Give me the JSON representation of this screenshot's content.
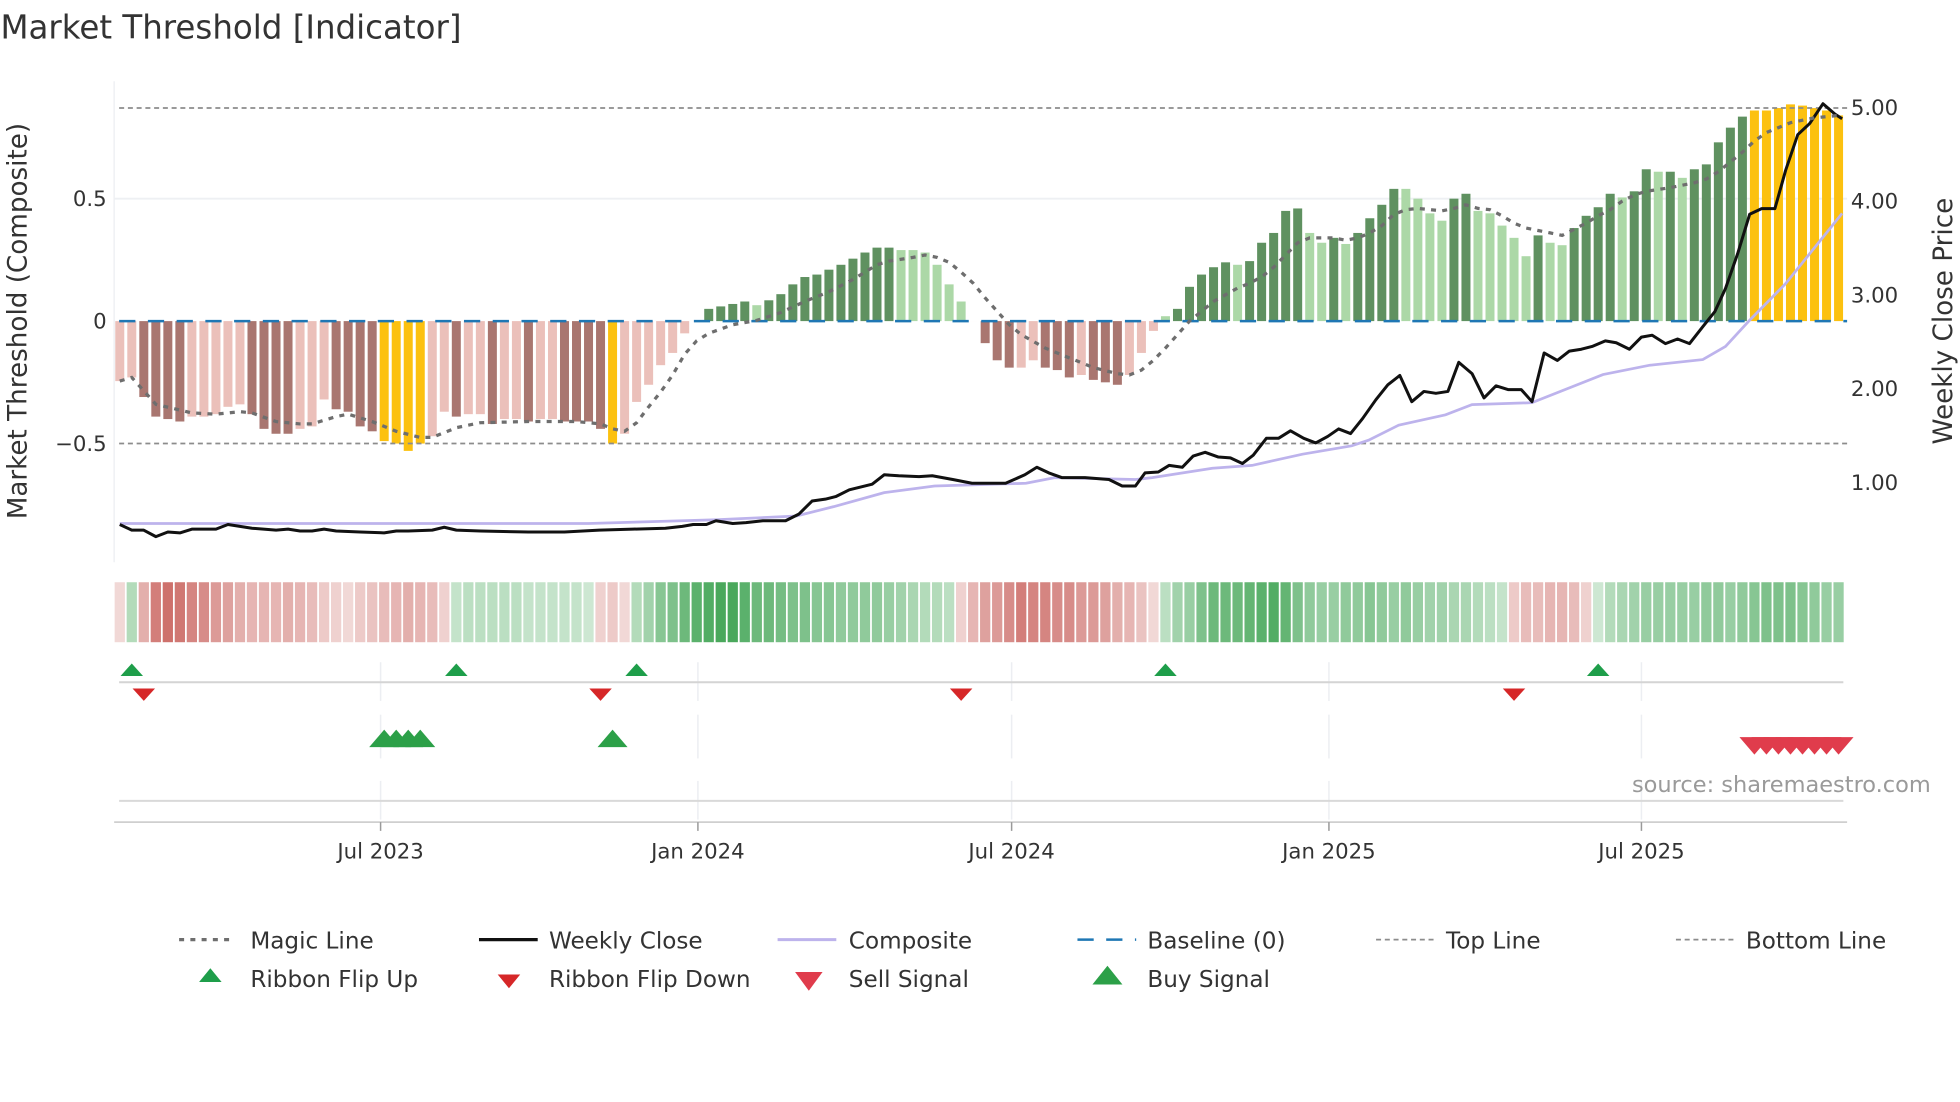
{
  "title": "Market Threshold [Indicator]",
  "source": "source: sharemaestro.com",
  "colors": {
    "bar_dark_negative": "#a97670",
    "bar_light_negative": "#ebc0ba",
    "bar_dark_positive": "#5f9160",
    "bar_light_positive": "#acd8a7",
    "bar_extreme": "#fcc10f",
    "magic_line": "#6e6e6e",
    "weekly_close": "#111111",
    "composite": "#bdb3ec",
    "baseline": "#1f77b4",
    "threshold_lines": "#8c8c8c",
    "ribbon_red": "#c9635e",
    "ribbon_green": "#38a04c",
    "flip_up": "#1e9e4a",
    "flip_down": "#d62728",
    "buy": "#2ca048",
    "sell": "#e03c4c"
  },
  "chart_data": {
    "type": "bar+line",
    "title": "Market Threshold [Indicator]",
    "x_unit": "week index",
    "ylabel_left": "Market Threshold (Composite)",
    "ylabel_right": "Weekly Close Price",
    "ylim_left": [
      -0.95,
      1.0
    ],
    "ylim_right": [
      0,
      5.2
    ],
    "left_ticks": [
      {
        "value": 0.5,
        "label": "0.5"
      },
      {
        "value": 0,
        "label": "0"
      },
      {
        "value": -0.5,
        "label": "−0.5"
      }
    ],
    "right_ticks": [
      {
        "value": 5,
        "label": "5.00"
      },
      {
        "value": 4,
        "label": "4.00"
      },
      {
        "value": 3,
        "label": "3.00"
      },
      {
        "value": 2,
        "label": "2.00"
      },
      {
        "value": 1,
        "label": "1.00"
      }
    ],
    "x_ticks": [
      {
        "week": 22.7,
        "label": "Jul 2023"
      },
      {
        "week": 49.1,
        "label": "Jan 2024"
      },
      {
        "week": 75.2,
        "label": "Jul 2024"
      },
      {
        "week": 101.6,
        "label": "Jan 2025"
      },
      {
        "week": 127.6,
        "label": "Jul 2025"
      }
    ],
    "top_line": 0.87,
    "bottom_line": -0.5,
    "baseline": 0,
    "grid": true,
    "legend_position": "bottom",
    "bars": {
      "values": [
        -0.245,
        -0.23,
        -0.31,
        -0.39,
        -0.4,
        -0.41,
        -0.39,
        -0.39,
        -0.38,
        -0.35,
        -0.34,
        -0.38,
        -0.44,
        -0.46,
        -0.46,
        -0.44,
        -0.43,
        -0.32,
        -0.36,
        -0.37,
        -0.43,
        -0.45,
        -0.49,
        -0.5,
        -0.53,
        -0.5,
        -0.47,
        -0.37,
        -0.39,
        -0.38,
        -0.38,
        -0.42,
        -0.4,
        -0.4,
        -0.41,
        -0.4,
        -0.4,
        -0.41,
        -0.41,
        -0.41,
        -0.44,
        -0.5,
        -0.46,
        -0.33,
        -0.26,
        -0.18,
        -0.13,
        -0.05,
        0,
        0.05,
        0.06,
        0.07,
        0.08,
        0.065,
        0.085,
        0.11,
        0.15,
        0.18,
        0.19,
        0.21,
        0.23,
        0.255,
        0.28,
        0.3,
        0.3,
        0.29,
        0.29,
        0.28,
        0.23,
        0.15,
        0.08,
        0,
        -0.09,
        -0.16,
        -0.19,
        -0.19,
        -0.16,
        -0.19,
        -0.2,
        -0.23,
        -0.22,
        -0.24,
        -0.25,
        -0.26,
        -0.22,
        -0.13,
        -0.04,
        0.02,
        0.05,
        0.14,
        0.19,
        0.22,
        0.24,
        0.23,
        0.245,
        0.32,
        0.36,
        0.45,
        0.46,
        0.36,
        0.32,
        0.34,
        0.315,
        0.36,
        0.42,
        0.475,
        0.54,
        0.54,
        0.5,
        0.44,
        0.41,
        0.5,
        0.52,
        0.45,
        0.44,
        0.39,
        0.34,
        0.265,
        0.35,
        0.32,
        0.31,
        0.38,
        0.43,
        0.465,
        0.52,
        0.505,
        0.53,
        0.62,
        0.61,
        0.61,
        0.585,
        0.62,
        0.64,
        0.73,
        0.79,
        0.835,
        0.86,
        0.86,
        0.87,
        0.885,
        0.88,
        0.87,
        0.86,
        0.84
      ],
      "color_codes": "LLDDDDLLLLLDDDDLLLDDDDYYYYLLDLLDLLDLLDDDDYLLLLLLLGGGGgGGGGGGGGGGGggggggLDDDLLDDDLDDDLLLgGGGGGgGGGGGggGgGGGGggggGGgggggGggGGGGgGGgGgGGGGGYYYYYYYY"
    },
    "magic_line": [
      [
        1,
        -0.245
      ],
      [
        2,
        -0.23
      ],
      [
        4,
        -0.34
      ],
      [
        7,
        -0.375
      ],
      [
        9,
        -0.38
      ],
      [
        11,
        -0.37
      ],
      [
        12,
        -0.375
      ],
      [
        14,
        -0.41
      ],
      [
        16,
        -0.42
      ],
      [
        17,
        -0.42
      ],
      [
        19,
        -0.39
      ],
      [
        20,
        -0.38
      ],
      [
        22,
        -0.41
      ],
      [
        24,
        -0.45
      ],
      [
        26,
        -0.475
      ],
      [
        27,
        -0.475
      ],
      [
        29,
        -0.435
      ],
      [
        31,
        -0.415
      ],
      [
        35,
        -0.41
      ],
      [
        39,
        -0.41
      ],
      [
        41,
        -0.42
      ],
      [
        42,
        -0.44
      ],
      [
        43,
        -0.45
      ],
      [
        44,
        -0.415
      ],
      [
        45,
        -0.35
      ],
      [
        46,
        -0.29
      ],
      [
        47,
        -0.22
      ],
      [
        48,
        -0.135
      ],
      [
        49,
        -0.08
      ],
      [
        50,
        -0.05
      ],
      [
        52,
        -0.015
      ],
      [
        54,
        0.003
      ],
      [
        56,
        0.035
      ],
      [
        58,
        0.08
      ],
      [
        60,
        0.12
      ],
      [
        62,
        0.17
      ],
      [
        64,
        0.23
      ],
      [
        65,
        0.245
      ],
      [
        67,
        0.26
      ],
      [
        68,
        0.27
      ],
      [
        69,
        0.26
      ],
      [
        70,
        0.24
      ],
      [
        71,
        0.2
      ],
      [
        72,
        0.155
      ],
      [
        73,
        0.095
      ],
      [
        74,
        0.04
      ],
      [
        75,
        -0.015
      ],
      [
        76,
        -0.055
      ],
      [
        78,
        -0.11
      ],
      [
        80,
        -0.15
      ],
      [
        82,
        -0.19
      ],
      [
        84,
        -0.215
      ],
      [
        85,
        -0.22
      ],
      [
        86,
        -0.2
      ],
      [
        87,
        -0.16
      ],
      [
        88,
        -0.11
      ],
      [
        89,
        -0.055
      ],
      [
        90,
        0
      ],
      [
        91,
        0.04
      ],
      [
        92,
        0.08
      ],
      [
        94,
        0.135
      ],
      [
        95,
        0.155
      ],
      [
        96,
        0.18
      ],
      [
        97,
        0.22
      ],
      [
        98,
        0.27
      ],
      [
        99,
        0.32
      ],
      [
        100,
        0.34
      ],
      [
        102,
        0.34
      ],
      [
        103,
        0.33
      ],
      [
        104,
        0.34
      ],
      [
        105,
        0.36
      ],
      [
        106,
        0.39
      ],
      [
        107,
        0.435
      ],
      [
        108,
        0.455
      ],
      [
        109,
        0.46
      ],
      [
        110,
        0.455
      ],
      [
        111,
        0.45
      ],
      [
        112,
        0.46
      ],
      [
        113,
        0.475
      ],
      [
        114,
        0.46
      ],
      [
        115,
        0.455
      ],
      [
        116,
        0.43
      ],
      [
        117,
        0.4
      ],
      [
        118,
        0.38
      ],
      [
        119,
        0.37
      ],
      [
        120,
        0.36
      ],
      [
        121,
        0.35
      ],
      [
        122,
        0.375
      ],
      [
        123,
        0.4
      ],
      [
        124,
        0.43
      ],
      [
        125,
        0.455
      ],
      [
        126,
        0.49
      ],
      [
        127,
        0.515
      ],
      [
        128,
        0.53
      ],
      [
        130,
        0.545
      ],
      [
        132,
        0.565
      ],
      [
        133,
        0.58
      ],
      [
        134,
        0.61
      ],
      [
        135,
        0.65
      ],
      [
        136,
        0.69
      ],
      [
        137,
        0.735
      ],
      [
        138,
        0.77
      ],
      [
        140,
        0.81
      ],
      [
        142,
        0.83
      ],
      [
        144,
        0.84
      ]
    ],
    "weekly_close": [
      [
        1,
        0.55
      ],
      [
        2,
        0.49
      ],
      [
        3,
        0.49
      ],
      [
        4,
        0.42
      ],
      [
        5,
        0.47
      ],
      [
        6,
        0.46
      ],
      [
        7,
        0.5
      ],
      [
        9,
        0.5
      ],
      [
        10,
        0.55
      ],
      [
        11,
        0.53
      ],
      [
        12,
        0.51
      ],
      [
        14,
        0.49
      ],
      [
        15,
        0.5
      ],
      [
        16,
        0.48
      ],
      [
        17,
        0.48
      ],
      [
        18,
        0.5
      ],
      [
        19,
        0.48
      ],
      [
        21,
        0.47
      ],
      [
        23,
        0.46
      ],
      [
        24,
        0.48
      ],
      [
        25,
        0.48
      ],
      [
        27,
        0.49
      ],
      [
        28,
        0.52
      ],
      [
        29,
        0.49
      ],
      [
        31,
        0.48
      ],
      [
        35,
        0.47
      ],
      [
        38,
        0.47
      ],
      [
        40.9,
        0.49
      ],
      [
        43.7,
        0.5
      ],
      [
        46.4,
        0.51
      ],
      [
        47.8,
        0.53
      ],
      [
        48.7,
        0.55
      ],
      [
        49.8,
        0.55
      ],
      [
        50.6,
        0.59
      ],
      [
        52,
        0.56
      ],
      [
        53.1,
        0.57
      ],
      [
        54.5,
        0.59
      ],
      [
        56.4,
        0.59
      ],
      [
        57.5,
        0.66
      ],
      [
        58.6,
        0.8
      ],
      [
        59.7,
        0.82
      ],
      [
        60.6,
        0.85
      ],
      [
        61.7,
        0.92
      ],
      [
        63.6,
        0.98
      ],
      [
        64.6,
        1.08
      ],
      [
        65.8,
        1.07
      ],
      [
        67.5,
        1.06
      ],
      [
        68.6,
        1.07
      ],
      [
        70.3,
        1.03
      ],
      [
        71.9,
        0.99
      ],
      [
        73,
        0.99
      ],
      [
        74.7,
        0.99
      ],
      [
        76.3,
        1.08
      ],
      [
        77.3,
        1.16
      ],
      [
        78.3,
        1.1
      ],
      [
        79.4,
        1.05
      ],
      [
        81.3,
        1.05
      ],
      [
        83.3,
        1.03
      ],
      [
        84.4,
        0.96
      ],
      [
        85.5,
        0.96
      ],
      [
        86.3,
        1.1
      ],
      [
        87.4,
        1.11
      ],
      [
        88.3,
        1.18
      ],
      [
        89.4,
        1.16
      ],
      [
        90.3,
        1.28
      ],
      [
        91.3,
        1.32
      ],
      [
        92.4,
        1.27
      ],
      [
        93.4,
        1.26
      ],
      [
        94.4,
        1.2
      ],
      [
        95.3,
        1.29
      ],
      [
        96.4,
        1.47
      ],
      [
        97.4,
        1.47
      ],
      [
        98.4,
        1.55
      ],
      [
        99.5,
        1.47
      ],
      [
        100.5,
        1.42
      ],
      [
        101.5,
        1.49
      ],
      [
        102.4,
        1.57
      ],
      [
        103.4,
        1.52
      ],
      [
        104.4,
        1.68
      ],
      [
        105.5,
        1.88
      ],
      [
        106.5,
        2.04
      ],
      [
        107.5,
        2.14
      ],
      [
        108.5,
        1.86
      ],
      [
        109.5,
        1.97
      ],
      [
        110.5,
        1.95
      ],
      [
        111.5,
        1.97
      ],
      [
        112.4,
        2.28
      ],
      [
        113.5,
        2.16
      ],
      [
        114.5,
        1.9
      ],
      [
        115.5,
        2.03
      ],
      [
        116.5,
        1.99
      ],
      [
        117.6,
        1.99
      ],
      [
        118.5,
        1.86
      ],
      [
        119.5,
        2.38
      ],
      [
        120.6,
        2.3
      ],
      [
        121.6,
        2.4
      ],
      [
        122.6,
        2.42
      ],
      [
        123.5,
        2.45
      ],
      [
        124.6,
        2.51
      ],
      [
        125.5,
        2.49
      ],
      [
        126.6,
        2.42
      ],
      [
        127.6,
        2.55
      ],
      [
        128.5,
        2.57
      ],
      [
        129.6,
        2.48
      ],
      [
        130.6,
        2.53
      ],
      [
        131.6,
        2.48
      ],
      [
        132.7,
        2.66
      ],
      [
        133.7,
        2.82
      ],
      [
        134.6,
        3.07
      ],
      [
        135.6,
        3.44
      ],
      [
        136.6,
        3.86
      ],
      [
        137.6,
        3.92
      ],
      [
        138.7,
        3.92
      ],
      [
        139.6,
        4.33
      ],
      [
        140.6,
        4.71
      ],
      [
        141.6,
        4.83
      ],
      [
        142.7,
        5.04
      ],
      [
        143.7,
        4.93
      ],
      [
        144.4,
        4.88
      ]
    ],
    "composite": [
      [
        1,
        0.56
      ],
      [
        40,
        0.56
      ],
      [
        50.6,
        0.6
      ],
      [
        57.3,
        0.64
      ],
      [
        60.4,
        0.74
      ],
      [
        64.6,
        0.89
      ],
      [
        68.8,
        0.96
      ],
      [
        76.4,
        0.99
      ],
      [
        78.8,
        1.05
      ],
      [
        85.5,
        1.03
      ],
      [
        86.9,
        1.05
      ],
      [
        91.9,
        1.15
      ],
      [
        95.2,
        1.18
      ],
      [
        99.4,
        1.3
      ],
      [
        103.5,
        1.39
      ],
      [
        104.9,
        1.45
      ],
      [
        107.4,
        1.61
      ],
      [
        111.3,
        1.72
      ],
      [
        113.5,
        1.83
      ],
      [
        118.5,
        1.85
      ],
      [
        124.4,
        2.15
      ],
      [
        128.3,
        2.25
      ],
      [
        132.7,
        2.31
      ],
      [
        134.6,
        2.45
      ],
      [
        136.6,
        2.73
      ],
      [
        139.6,
        3.12
      ],
      [
        144.4,
        3.87
      ]
    ],
    "ribbon": [
      -0.15,
      0.3,
      -0.45,
      -0.8,
      -0.9,
      -0.85,
      -0.75,
      -0.7,
      -0.6,
      -0.55,
      -0.45,
      -0.4,
      -0.4,
      -0.4,
      -0.45,
      -0.4,
      -0.35,
      -0.25,
      -0.2,
      -0.15,
      -0.25,
      -0.3,
      -0.35,
      -0.4,
      -0.45,
      -0.4,
      -0.35,
      -0.2,
      0.2,
      0.25,
      0.25,
      0.25,
      0.25,
      0.25,
      0.2,
      0.2,
      0.2,
      0.2,
      0.2,
      0.15,
      -0.2,
      -0.25,
      -0.15,
      0.3,
      0.4,
      0.55,
      0.6,
      0.7,
      0.8,
      0.85,
      0.9,
      0.9,
      0.8,
      0.7,
      0.7,
      0.65,
      0.6,
      0.6,
      0.55,
      0.55,
      0.5,
      0.5,
      0.5,
      0.5,
      0.45,
      0.4,
      0.35,
      0.3,
      0.3,
      0.25,
      -0.2,
      -0.4,
      -0.55,
      -0.6,
      -0.7,
      -0.8,
      -0.75,
      -0.75,
      -0.7,
      -0.7,
      -0.6,
      -0.6,
      -0.55,
      -0.45,
      -0.4,
      -0.3,
      -0.15,
      0.25,
      0.4,
      0.45,
      0.6,
      0.7,
      0.7,
      0.7,
      0.75,
      0.8,
      0.85,
      0.75,
      0.6,
      0.5,
      0.45,
      0.45,
      0.5,
      0.5,
      0.55,
      0.5,
      0.45,
      0.5,
      0.45,
      0.4,
      0.4,
      0.35,
      0.35,
      0.3,
      0.25,
      0.2,
      -0.25,
      -0.35,
      -0.35,
      -0.4,
      -0.4,
      -0.35,
      -0.2,
      0.15,
      0.3,
      0.35,
      0.4,
      0.45,
      0.45,
      0.45,
      0.45,
      0.45,
      0.5,
      0.5,
      0.45,
      0.5,
      0.55,
      0.6,
      0.6,
      0.6,
      0.55,
      0.5,
      0.45,
      0.45
    ],
    "ribbon_flip_up_weeks": [
      2,
      29,
      44,
      88,
      124
    ],
    "ribbon_flip_down_weeks": [
      3,
      41,
      71,
      117
    ],
    "buy_signal_weeks": [
      23,
      24,
      25,
      26,
      42
    ],
    "sell_signal_weeks": [
      137,
      138,
      139,
      140,
      141,
      142,
      143,
      144
    ]
  },
  "legend": {
    "items": [
      {
        "label": "Magic Line"
      },
      {
        "label": "Weekly Close"
      },
      {
        "label": "Composite"
      },
      {
        "label": "Baseline (0)"
      },
      {
        "label": "Top Line"
      },
      {
        "label": "Bottom Line"
      },
      {
        "label": "Ribbon Flip Up"
      },
      {
        "label": "Ribbon Flip Down"
      },
      {
        "label": "Sell Signal"
      },
      {
        "label": "Buy Signal"
      }
    ]
  }
}
